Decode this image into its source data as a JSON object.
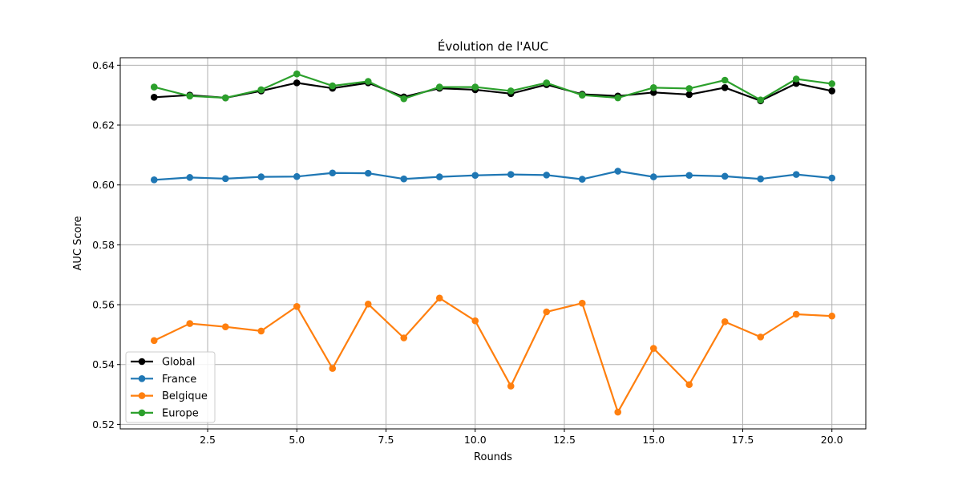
{
  "chart_data": {
    "type": "line",
    "title": "Évolution de l'AUC",
    "xlabel": "Rounds",
    "ylabel": "AUC Score",
    "xlim": [
      0.05,
      20.95
    ],
    "ylim": [
      0.5185,
      0.6425
    ],
    "x_ticks": [
      2.5,
      5.0,
      7.5,
      10.0,
      12.5,
      15.0,
      17.5,
      20.0
    ],
    "x_tick_labels": [
      "2.5",
      "5.0",
      "7.5",
      "10.0",
      "12.5",
      "15.0",
      "17.5",
      "20.0"
    ],
    "y_ticks": [
      0.52,
      0.54,
      0.56,
      0.58,
      0.6,
      0.62,
      0.64
    ],
    "y_tick_labels": [
      "0.52",
      "0.54",
      "0.56",
      "0.58",
      "0.60",
      "0.62",
      "0.64"
    ],
    "grid": true,
    "legend_position": "lower-left",
    "x": [
      1,
      2,
      3,
      4,
      5,
      6,
      7,
      8,
      9,
      10,
      11,
      12,
      13,
      14,
      15,
      16,
      17,
      18,
      19,
      20
    ],
    "series": [
      {
        "name": "Global",
        "color": "#000000",
        "values": [
          0.6293,
          0.63,
          0.6291,
          0.6314,
          0.6341,
          0.6323,
          0.6341,
          0.6294,
          0.6323,
          0.6318,
          0.6305,
          0.6335,
          0.6303,
          0.6297,
          0.6309,
          0.6302,
          0.6325,
          0.6281,
          0.6339,
          0.6314
        ]
      },
      {
        "name": "France",
        "color": "#1f77b4",
        "values": [
          0.6017,
          0.6025,
          0.6021,
          0.6027,
          0.6028,
          0.604,
          0.6039,
          0.602,
          0.6027,
          0.6032,
          0.6035,
          0.6033,
          0.6019,
          0.6046,
          0.6027,
          0.6032,
          0.6029,
          0.602,
          0.6035,
          0.6023
        ]
      },
      {
        "name": "Belgique",
        "color": "#ff7f0e",
        "values": [
          0.548,
          0.5537,
          0.5526,
          0.5512,
          0.5594,
          0.5387,
          0.5602,
          0.5489,
          0.5622,
          0.5546,
          0.5328,
          0.5576,
          0.5605,
          0.5241,
          0.5454,
          0.5333,
          0.5543,
          0.5492,
          0.5568,
          0.5562
        ]
      },
      {
        "name": "Europe",
        "color": "#2ca02c",
        "values": [
          0.6327,
          0.6297,
          0.6291,
          0.6318,
          0.6371,
          0.6331,
          0.6346,
          0.6288,
          0.6327,
          0.6327,
          0.6314,
          0.6341,
          0.63,
          0.6291,
          0.6325,
          0.6322,
          0.635,
          0.6284,
          0.6354,
          0.6338
        ]
      }
    ]
  }
}
